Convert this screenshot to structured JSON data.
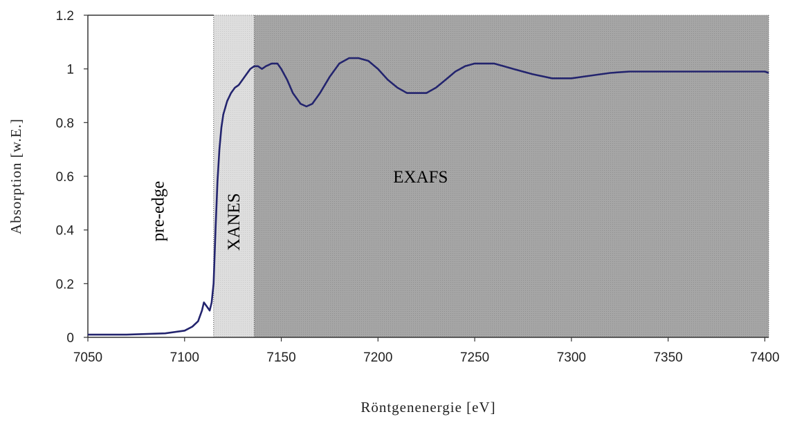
{
  "chart_data": {
    "type": "line",
    "xlabel": "Röntgenenergie [eV]",
    "ylabel": "Absorption [w.E.]",
    "xlim": [
      7050,
      7402
    ],
    "ylim": [
      0,
      1.2
    ],
    "xticks": [
      "7050",
      "7100",
      "7150",
      "7200",
      "7250",
      "7300",
      "7350",
      "7400"
    ],
    "yticks": [
      "0",
      "0.2",
      "0.4",
      "0.6",
      "0.8",
      "1",
      "1.2"
    ],
    "grid": false,
    "legend": "none",
    "colors": {
      "line": "#23246e",
      "xanes_fill": "#dcdcdc",
      "exafs_fill": "#aaaaaa"
    },
    "regions": [
      {
        "label": "pre-edge",
        "x_start": 7050,
        "x_end": 7115
      },
      {
        "label": "XANES",
        "x_start": 7115,
        "x_end": 7136
      },
      {
        "label": "EXAFS",
        "x_start": 7136,
        "x_end": 7402
      }
    ],
    "series": [
      {
        "x": [
          7050,
          7070,
          7090,
          7100,
          7104,
          7107,
          7109,
          7110,
          7111,
          7112,
          7113,
          7114,
          7115,
          7116,
          7117,
          7118,
          7119,
          7120,
          7122,
          7124,
          7126,
          7128,
          7130,
          7132,
          7134,
          7136,
          7138,
          7140,
          7142,
          7145,
          7148,
          7150,
          7153,
          7156,
          7160,
          7163,
          7166,
          7170,
          7175,
          7180,
          7185,
          7190,
          7195,
          7200,
          7205,
          7210,
          7215,
          7220,
          7225,
          7230,
          7235,
          7240,
          7245,
          7250,
          7255,
          7260,
          7265,
          7270,
          7280,
          7290,
          7300,
          7310,
          7320,
          7330,
          7340,
          7350,
          7360,
          7370,
          7380,
          7390,
          7400,
          7402
        ],
        "y": [
          0.01,
          0.01,
          0.015,
          0.025,
          0.04,
          0.06,
          0.1,
          0.13,
          0.12,
          0.11,
          0.1,
          0.13,
          0.2,
          0.4,
          0.58,
          0.7,
          0.78,
          0.83,
          0.88,
          0.91,
          0.93,
          0.94,
          0.96,
          0.98,
          1.0,
          1.01,
          1.01,
          1.0,
          1.01,
          1.02,
          1.02,
          1.0,
          0.96,
          0.91,
          0.87,
          0.86,
          0.87,
          0.91,
          0.97,
          1.02,
          1.04,
          1.04,
          1.03,
          1.0,
          0.96,
          0.93,
          0.91,
          0.91,
          0.91,
          0.93,
          0.96,
          0.99,
          1.01,
          1.02,
          1.02,
          1.02,
          1.01,
          1.0,
          0.98,
          0.965,
          0.965,
          0.975,
          0.985,
          0.99,
          0.99,
          0.99,
          0.99,
          0.99,
          0.99,
          0.99,
          0.99,
          0.985
        ]
      }
    ]
  }
}
